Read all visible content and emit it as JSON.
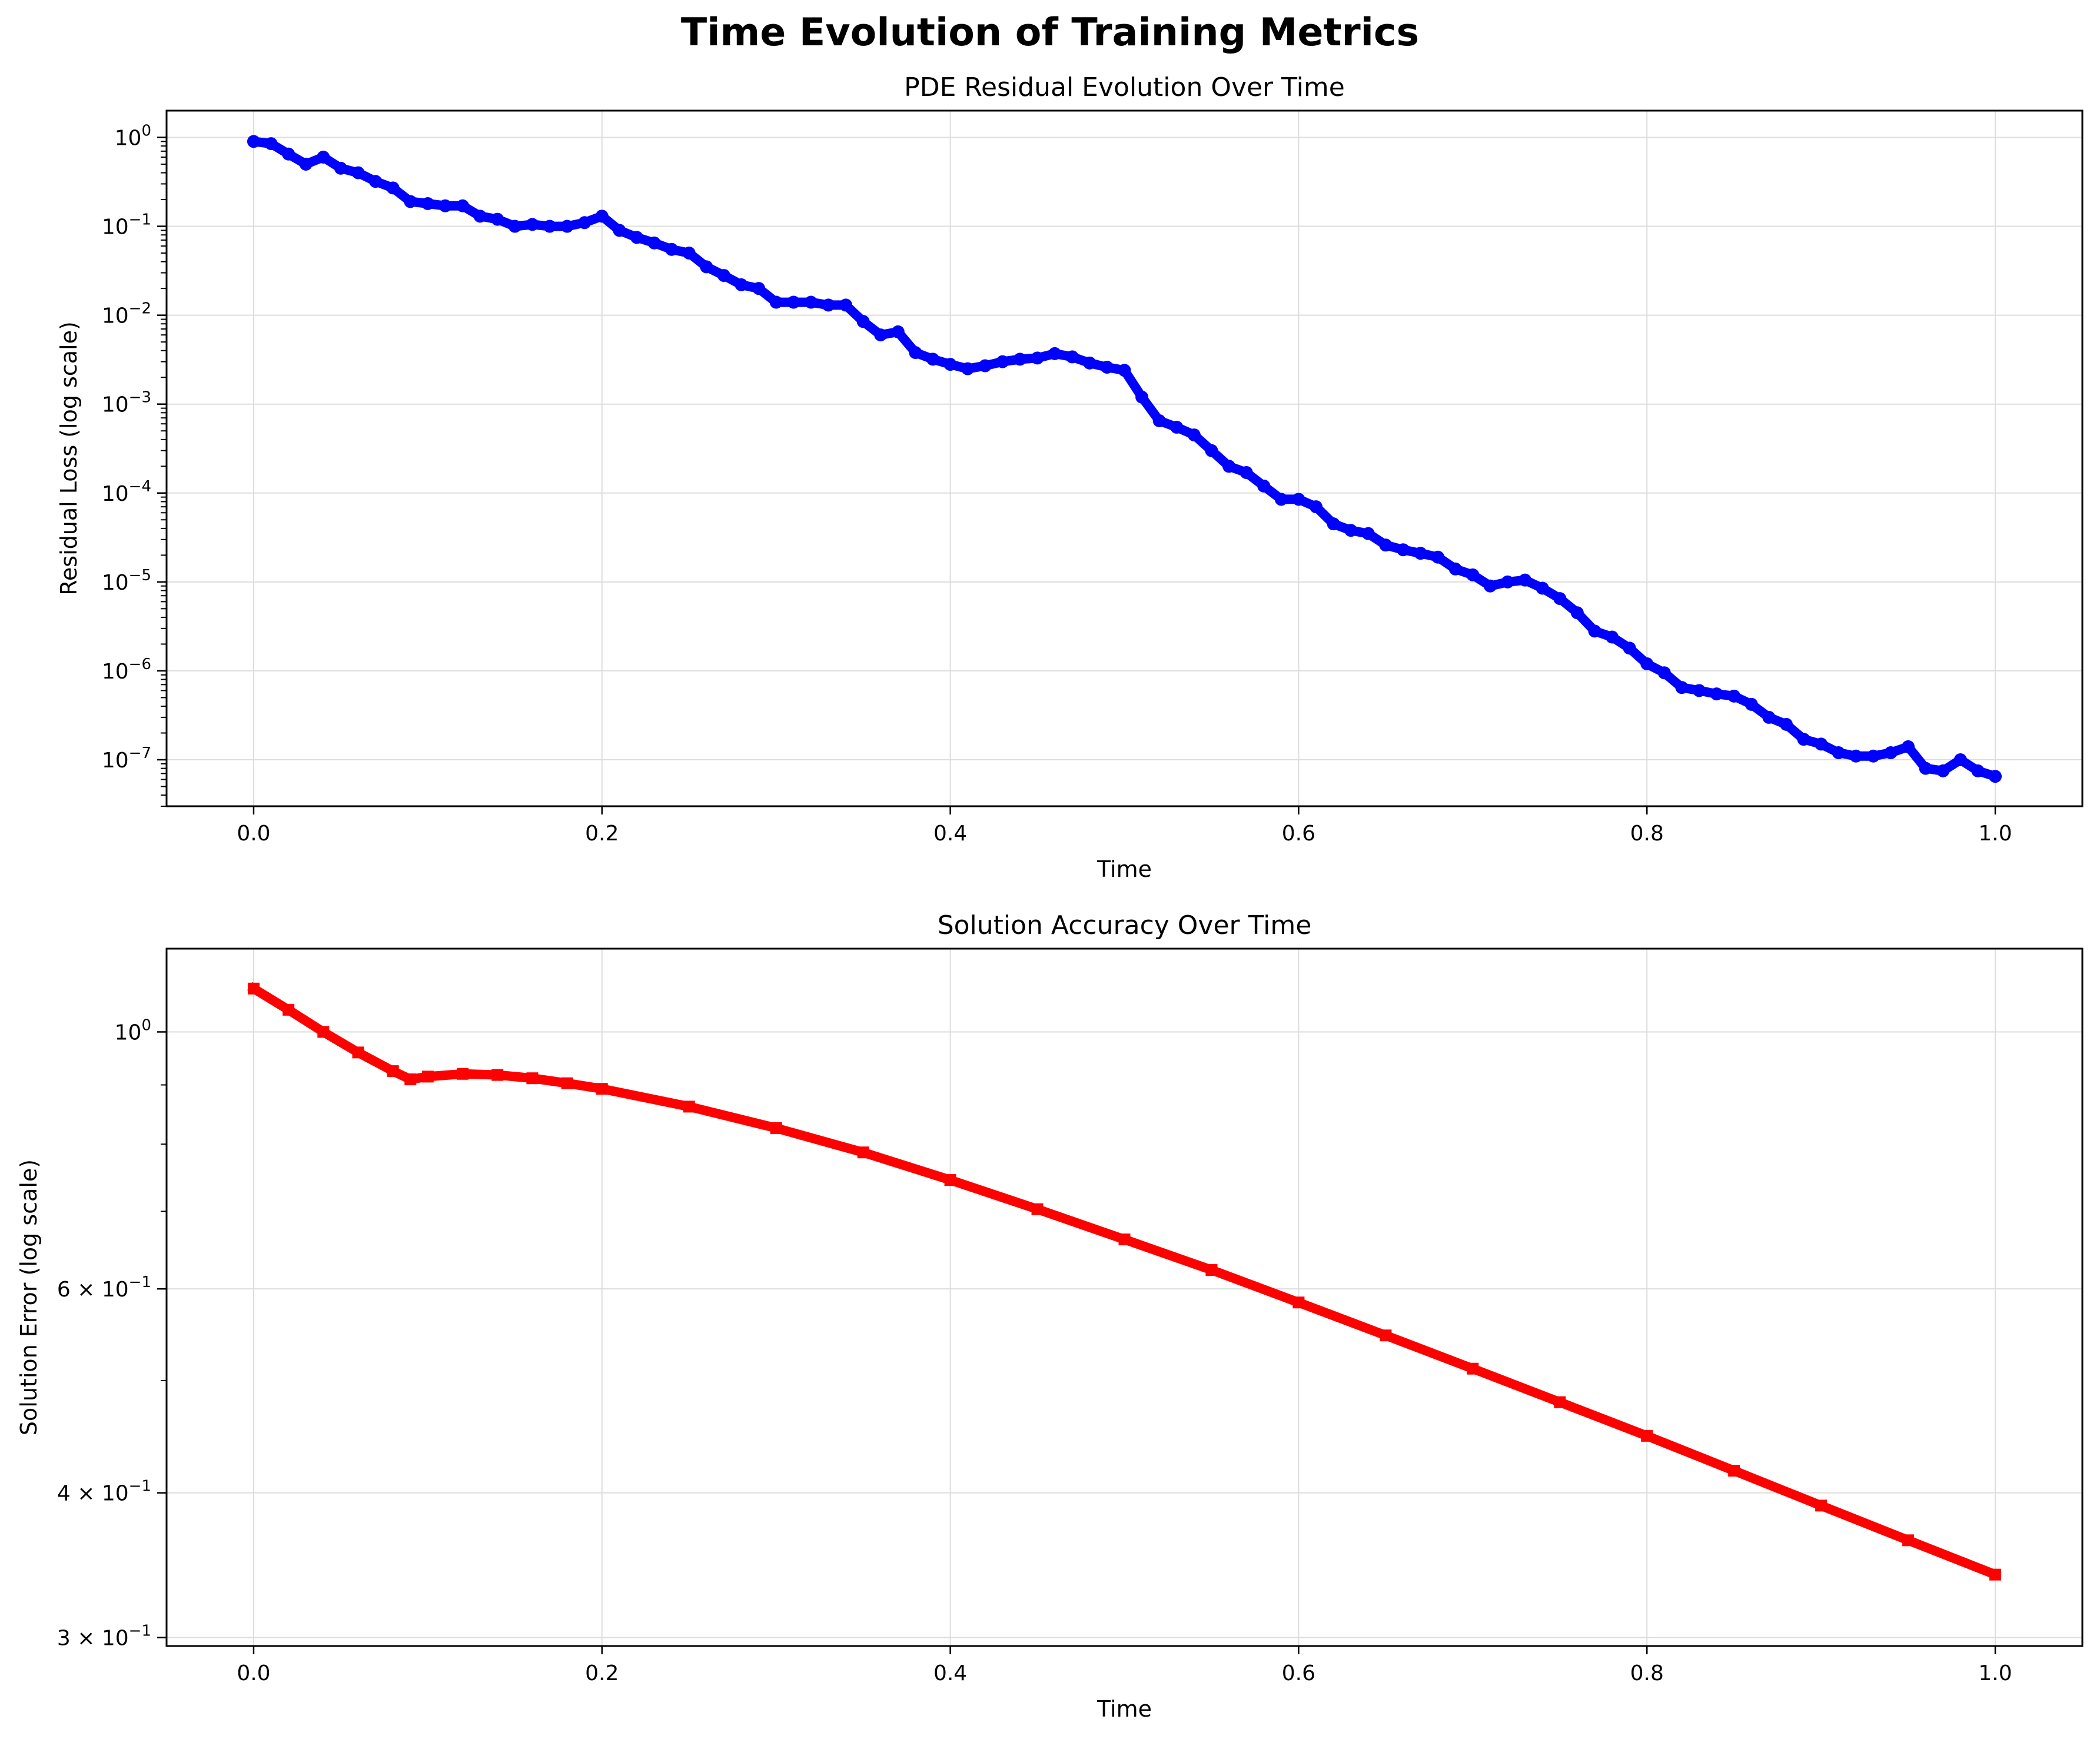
{
  "figure": {
    "title": "Time Evolution of Training Metrics"
  },
  "chart_data": [
    {
      "type": "line",
      "marker": "circle",
      "title": "PDE Residual Evolution Over Time",
      "xlabel": "Time",
      "ylabel": "Residual Loss (log scale)",
      "yscale": "log",
      "xlim": [
        -0.05,
        1.05
      ],
      "ylim": [
        3e-08,
        2
      ],
      "grid": true,
      "color": "#0000ff",
      "x_ticks": [
        0.0,
        0.2,
        0.4,
        0.6,
        0.8,
        1.0
      ],
      "x_tick_labels": [
        "0.0",
        "0.2",
        "0.4",
        "0.6",
        "0.8",
        "1.0"
      ],
      "y_ticks": [
        1,
        0.1,
        0.01,
        0.001,
        0.0001,
        1e-05,
        1e-06,
        1e-07
      ],
      "y_tick_labels": [
        {
          "base": "10",
          "exp": "0"
        },
        {
          "base": "10",
          "exp": "−1"
        },
        {
          "base": "10",
          "exp": "−2"
        },
        {
          "base": "10",
          "exp": "−3"
        },
        {
          "base": "10",
          "exp": "−4"
        },
        {
          "base": "10",
          "exp": "−5"
        },
        {
          "base": "10",
          "exp": "−6"
        },
        {
          "base": "10",
          "exp": "−7"
        }
      ],
      "series": [
        {
          "x": [
            0.0,
            0.01,
            0.02,
            0.03,
            0.04,
            0.05,
            0.06,
            0.07,
            0.08,
            0.09,
            0.1,
            0.11,
            0.12,
            0.13,
            0.14,
            0.15,
            0.16,
            0.17,
            0.18,
            0.19,
            0.2,
            0.21,
            0.22,
            0.23,
            0.24,
            0.25,
            0.26,
            0.27,
            0.28,
            0.29,
            0.3,
            0.31,
            0.32,
            0.33,
            0.34,
            0.35,
            0.36,
            0.37,
            0.38,
            0.39,
            0.4,
            0.41,
            0.42,
            0.43,
            0.44,
            0.45,
            0.46,
            0.47,
            0.48,
            0.49,
            0.5,
            0.51,
            0.52,
            0.53,
            0.54,
            0.55,
            0.56,
            0.57,
            0.58,
            0.59,
            0.6,
            0.61,
            0.62,
            0.63,
            0.64,
            0.65,
            0.66,
            0.67,
            0.68,
            0.69,
            0.7,
            0.71,
            0.72,
            0.73,
            0.74,
            0.75,
            0.76,
            0.77,
            0.78,
            0.79,
            0.8,
            0.81,
            0.82,
            0.83,
            0.84,
            0.85,
            0.86,
            0.87,
            0.88,
            0.89,
            0.9,
            0.91,
            0.92,
            0.93,
            0.94,
            0.95,
            0.96,
            0.97,
            0.98,
            0.99,
            1.0
          ],
          "values": [
            0.9,
            0.85,
            0.65,
            0.5,
            0.6,
            0.45,
            0.4,
            0.32,
            0.27,
            0.19,
            0.18,
            0.17,
            0.17,
            0.13,
            0.12,
            0.1,
            0.105,
            0.1,
            0.1,
            0.11,
            0.13,
            0.09,
            0.075,
            0.065,
            0.055,
            0.05,
            0.035,
            0.028,
            0.022,
            0.02,
            0.014,
            0.014,
            0.014,
            0.013,
            0.013,
            0.0085,
            0.006,
            0.0065,
            0.0038,
            0.0032,
            0.0028,
            0.0025,
            0.0027,
            0.003,
            0.0032,
            0.0033,
            0.0037,
            0.0034,
            0.0029,
            0.0026,
            0.0024,
            0.0012,
            0.00065,
            0.00055,
            0.00045,
            0.0003,
            0.0002,
            0.00017,
            0.00012,
            8.5e-05,
            8.5e-05,
            7e-05,
            4.5e-05,
            3.8e-05,
            3.5e-05,
            2.6e-05,
            2.3e-05,
            2.1e-05,
            1.9e-05,
            1.4e-05,
            1.2e-05,
            9e-06,
            1e-05,
            1.05e-05,
            8.5e-06,
            6.5e-06,
            4.5e-06,
            2.8e-06,
            2.4e-06,
            1.8e-06,
            1.2e-06,
            9.5e-07,
            6.5e-07,
            6e-07,
            5.5e-07,
            5.2e-07,
            4.2e-07,
            3e-07,
            2.5e-07,
            1.7e-07,
            1.5e-07,
            1.2e-07,
            1.1e-07,
            1.1e-07,
            1.2e-07,
            1.4e-07,
            8e-08,
            7.5e-08,
            1e-07,
            7.5e-08,
            6.5e-08
          ]
        }
      ]
    },
    {
      "type": "line",
      "marker": "square",
      "title": "Solution Accuracy Over Time",
      "xlabel": "Time",
      "ylabel": "Solution Error (log scale)",
      "yscale": "log",
      "xlim": [
        -0.05,
        1.05
      ],
      "ylim": [
        0.295,
        1.18
      ],
      "grid": true,
      "color": "#ff0000",
      "x_ticks": [
        0.0,
        0.2,
        0.4,
        0.6,
        0.8,
        1.0
      ],
      "x_tick_labels": [
        "0.0",
        "0.2",
        "0.4",
        "0.6",
        "0.8",
        "1.0"
      ],
      "y_ticks": [
        1,
        0.6,
        0.4,
        0.3
      ],
      "y_tick_labels": [
        {
          "base": "10",
          "exp": "0"
        },
        {
          "base": "6 × 10",
          "exp": "−1"
        },
        {
          "base": "4 × 10",
          "exp": "−1"
        },
        {
          "base": "3 × 10",
          "exp": "−1"
        }
      ],
      "series": [
        {
          "x": [
            0.0,
            0.02,
            0.04,
            0.06,
            0.08,
            0.09,
            0.1,
            0.12,
            0.14,
            0.16,
            0.18,
            0.2,
            0.25,
            0.3,
            0.35,
            0.4,
            0.45,
            0.5,
            0.55,
            0.6,
            0.65,
            0.7,
            0.75,
            0.8,
            0.85,
            0.9,
            0.95,
            1.0
          ],
          "values": [
            1.09,
            1.045,
            1.0,
            0.96,
            0.925,
            0.91,
            0.915,
            0.92,
            0.918,
            0.912,
            0.903,
            0.893,
            0.862,
            0.826,
            0.787,
            0.745,
            0.703,
            0.662,
            0.623,
            0.584,
            0.547,
            0.512,
            0.479,
            0.448,
            0.418,
            0.39,
            0.364,
            0.34
          ]
        }
      ]
    }
  ]
}
